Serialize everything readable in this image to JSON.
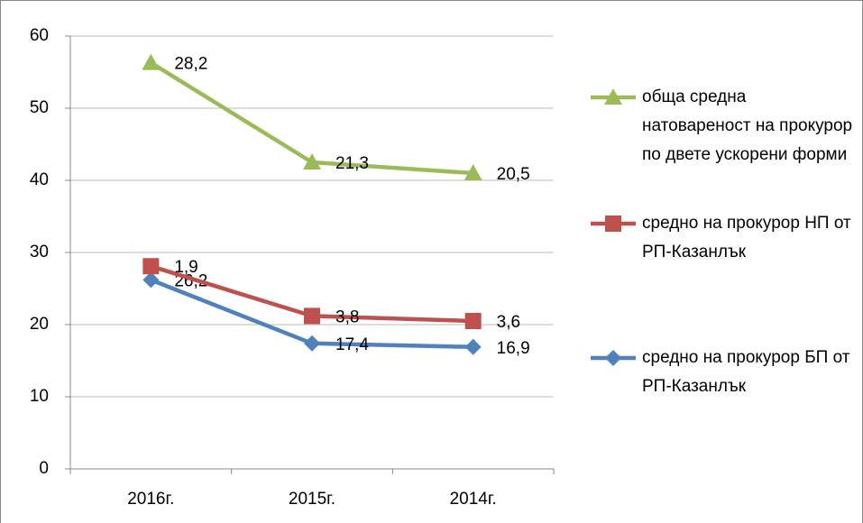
{
  "chart_data": {
    "type": "line",
    "stacked": true,
    "categories": [
      "2016г.",
      "2015г.",
      "2014г."
    ],
    "series": [
      {
        "name": "обща средна натовареност на прокурор по двете ускорени форми",
        "color": "#9bbb59",
        "marker": "triangle",
        "values": [
          28.2,
          21.3,
          20.5
        ],
        "value_labels": [
          "28,2",
          "21,3",
          "20,5"
        ]
      },
      {
        "name": "средно на прокурор НП от РП-Казанлък",
        "color": "#c0504d",
        "marker": "square",
        "values": [
          1.9,
          3.8,
          3.6
        ],
        "value_labels": [
          "1,9",
          "3,8",
          "3,6"
        ]
      },
      {
        "name": "средно на прокурор БП от РП-Казанлък",
        "color": "#4f81bd",
        "marker": "diamond",
        "values": [
          26.2,
          17.4,
          16.9
        ],
        "value_labels": [
          "26,2",
          "17,4",
          "16,9"
        ]
      }
    ],
    "ylim": [
      0,
      60
    ],
    "yticks": [
      0,
      10,
      20,
      30,
      40,
      50,
      60
    ],
    "grid": true,
    "legend": "right"
  }
}
